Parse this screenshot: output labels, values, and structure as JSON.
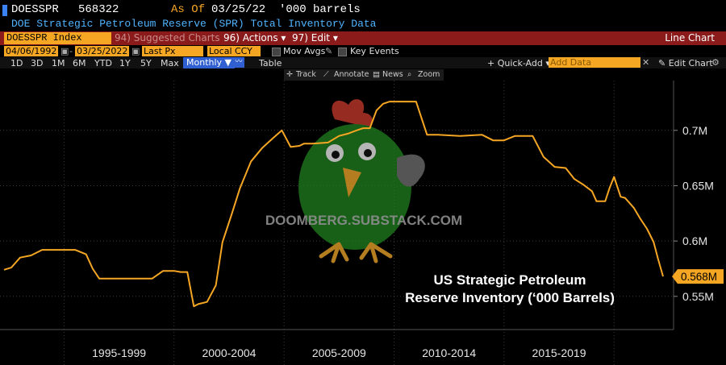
{
  "header": {
    "ticker": "DOESSPR",
    "last_value": "568322",
    "as_of_label": "As Of",
    "as_of_date": "03/25/22",
    "units": "'000 barrels",
    "description": "DOE Strategic Petroleum Reserve (SPR) Total Inventory Data"
  },
  "toolbar": {
    "security": "DOESSPR Index",
    "suggested": "94) Suggested Charts",
    "actions": "96) Actions ▾",
    "edit": "97) Edit ▾",
    "chart_type": "Line Chart"
  },
  "controls": {
    "start_date": "04/06/1992",
    "end_date": "03/25/2022",
    "field": "Last Px",
    "currency": "Local CCY",
    "mov_avgs": "Mov Avgs",
    "key_events": "Key Events"
  },
  "ranges": {
    "items": [
      "1D",
      "3D",
      "1M",
      "6M",
      "YTD",
      "1Y",
      "5Y",
      "Max"
    ],
    "period": "Monthly ▼",
    "table": "Table",
    "quick_add": "+ Quick-Add ▾",
    "add_data_placeholder": "Add Data",
    "edit_chart": "✎ Edit Chart"
  },
  "chart_tools": {
    "track": "Track",
    "annotate": "Annotate",
    "news": "News",
    "zoom": "Zoom"
  },
  "watermark": "DOOMBERG.SUBSTACK.COM",
  "annotation": [
    "US Strategic Petroleum",
    "Reserve Inventory (‘000 Barrels)"
  ],
  "colors": {
    "line": "#f5a623",
    "toolbar_red": "#8b1a1a",
    "header_blue": "#4fb3ff",
    "grid": "#3a3a3a"
  },
  "chart_data": {
    "type": "line",
    "title": "DOE Strategic Petroleum Reserve (SPR) Total Inventory Data",
    "units": "'000 barrels",
    "x_range": [
      1992.27,
      2022.23
    ],
    "ylim": [
      0.52,
      0.745
    ],
    "y_ticks": [
      0.55,
      0.6,
      0.65,
      0.7
    ],
    "y_tick_labels": [
      "0.55M",
      "0.6M",
      "0.65M",
      "0.7M"
    ],
    "x_period_labels": [
      "1995-1999",
      "2000-2004",
      "2005-2009",
      "2010-2014",
      "2015-2019"
    ],
    "x_period_centers": [
      1997.5,
      2002.5,
      2007.5,
      2012.5,
      2017.5
    ],
    "x_separators": [
      1995,
      2000,
      2005,
      2010,
      2015,
      2020
    ],
    "last_value_label": "0.568M",
    "series": [
      {
        "x": [
          1992.27,
          1992.6,
          1993.0,
          1993.5,
          1994.0,
          1994.5,
          1995.0,
          1995.5,
          1996.0,
          1996.3,
          1996.6,
          1996.9,
          1997.3,
          1998.0,
          1998.6,
          1999.0,
          1999.5,
          1999.8,
          2000.0,
          2000.3,
          2000.6,
          2000.9,
          2001.1,
          2001.5,
          2001.9,
          2002.2,
          2002.6,
          2003.0,
          2003.5,
          2004.0,
          2004.5,
          2004.9,
          2005.3,
          2005.7,
          2005.9,
          2006.3,
          2007.0,
          2007.5,
          2007.9,
          2008.3,
          2008.6,
          2008.9,
          2009.2,
          2009.5,
          2009.8,
          2010.0,
          2010.3,
          2011.0,
          2011.5,
          2012.0,
          2013.0,
          2014.0,
          2014.5,
          2015.0,
          2015.5,
          2016.0,
          2016.3,
          2016.8,
          2017.3,
          2017.8,
          2018.2,
          2018.6,
          2019.0,
          2019.2,
          2019.4,
          2019.6,
          2019.8,
          2020.0,
          2020.3,
          2020.5,
          2020.9,
          2021.2,
          2021.5,
          2021.8,
          2022.0,
          2022.23
        ],
        "y": [
          0.574,
          0.576,
          0.585,
          0.587,
          0.592,
          0.592,
          0.592,
          0.592,
          0.588,
          0.575,
          0.566,
          0.566,
          0.566,
          0.566,
          0.566,
          0.566,
          0.573,
          0.573,
          0.573,
          0.572,
          0.572,
          0.541,
          0.543,
          0.545,
          0.56,
          0.599,
          0.623,
          0.648,
          0.672,
          0.684,
          0.693,
          0.7,
          0.685,
          0.686,
          0.688,
          0.688,
          0.689,
          0.695,
          0.697,
          0.7,
          0.702,
          0.702,
          0.718,
          0.724,
          0.726,
          0.726,
          0.726,
          0.726,
          0.696,
          0.696,
          0.695,
          0.696,
          0.691,
          0.691,
          0.695,
          0.695,
          0.695,
          0.676,
          0.667,
          0.666,
          0.656,
          0.651,
          0.645,
          0.636,
          0.636,
          0.636,
          0.648,
          0.658,
          0.64,
          0.639,
          0.63,
          0.62,
          0.611,
          0.599,
          0.584,
          0.568
        ]
      }
    ]
  }
}
